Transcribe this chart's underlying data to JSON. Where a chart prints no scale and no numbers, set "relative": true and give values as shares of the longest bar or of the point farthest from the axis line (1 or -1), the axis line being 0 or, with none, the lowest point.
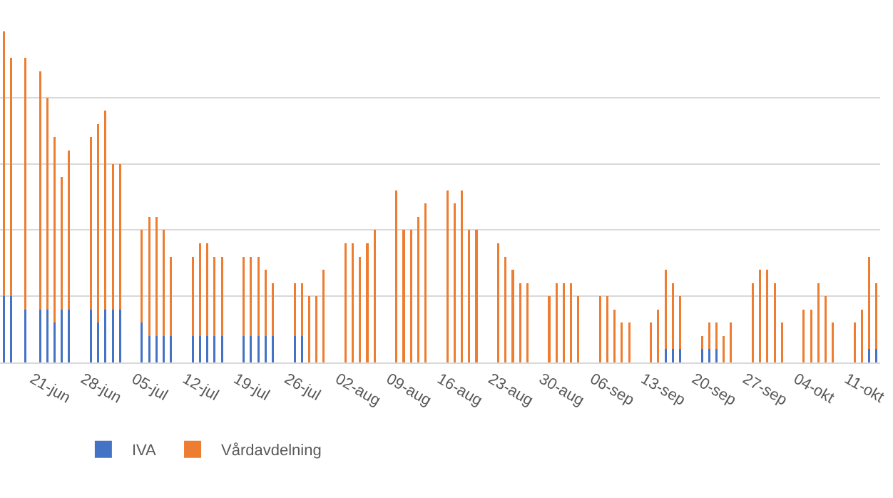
{
  "chart_data": {
    "type": "bar",
    "stacked": true,
    "relative": true,
    "grid": "y",
    "legend": "bottom left",
    "categories": [
      null,
      null,
      null,
      null,
      "21-jun",
      null,
      null,
      null,
      null,
      null,
      null,
      "28-jun",
      null,
      null,
      null,
      null,
      null,
      null,
      "05-jul",
      null,
      null,
      null,
      null,
      null,
      null,
      "12-jul",
      null,
      null,
      null,
      null,
      null,
      null,
      "19-jul",
      null,
      null,
      null,
      null,
      null,
      null,
      "26-jul",
      null,
      null,
      null,
      null,
      null,
      null,
      "02-aug",
      null,
      null,
      null,
      null,
      null,
      null,
      "09-aug",
      null,
      null,
      null,
      null,
      null,
      null,
      "16-aug",
      null,
      null,
      null,
      null,
      null,
      null,
      "23-aug",
      null,
      null,
      null,
      null,
      null,
      null,
      "30-aug",
      null,
      null,
      null,
      null,
      null,
      null,
      "06-sep",
      null,
      null,
      null,
      null,
      null,
      null,
      "13-sep",
      null,
      null,
      null,
      null,
      null,
      null,
      "20-sep",
      null,
      null,
      null,
      null,
      null,
      null,
      "27-sep",
      null,
      null,
      null,
      null,
      null,
      null,
      "04-okt",
      null,
      null,
      null,
      null,
      null,
      null,
      "11-okt",
      null,
      null,
      null,
      null
    ],
    "series": [
      {
        "name": "IVA",
        "color": "#4472c4",
        "values": [
          0.2,
          0.2,
          null,
          0.16,
          null,
          0.16,
          0.16,
          0.12,
          0.16,
          0.16,
          null,
          null,
          0.16,
          0.12,
          0.16,
          0.16,
          0.16,
          null,
          null,
          0.12,
          0.08,
          0.08,
          0.08,
          0.08,
          null,
          null,
          0.08,
          0.08,
          0.08,
          0.08,
          0.08,
          null,
          null,
          0.08,
          0.08,
          0.08,
          0.08,
          0.08,
          null,
          null,
          0.08,
          0.08,
          null,
          null,
          null,
          null,
          null,
          null,
          null,
          null,
          null,
          null,
          null,
          null,
          null,
          null,
          null,
          null,
          null,
          null,
          null,
          null,
          null,
          null,
          null,
          null,
          null,
          null,
          null,
          null,
          null,
          null,
          null,
          null,
          null,
          null,
          null,
          null,
          null,
          null,
          null,
          null,
          null,
          null,
          null,
          null,
          null,
          null,
          null,
          null,
          null,
          0.04,
          0.04,
          0.04,
          null,
          null,
          0.04,
          0.04,
          0.04,
          null,
          null,
          null,
          null,
          null,
          null,
          null,
          null,
          null,
          null,
          null,
          null,
          null,
          null,
          null,
          null,
          null,
          null,
          null,
          null,
          0.04,
          0.04
        ]
      },
      {
        "name": "Vårdavdelning",
        "color": "#ed7d31",
        "values": [
          0.8,
          0.72,
          null,
          0.76,
          null,
          0.72,
          0.64,
          0.56,
          0.4,
          0.48,
          null,
          null,
          0.52,
          0.6,
          0.6,
          0.44,
          0.44,
          null,
          null,
          0.28,
          0.36,
          0.36,
          0.32,
          0.24,
          null,
          null,
          0.24,
          0.28,
          0.28,
          0.24,
          0.24,
          null,
          null,
          0.24,
          0.24,
          0.24,
          0.2,
          0.16,
          null,
          null,
          0.16,
          0.16,
          0.2,
          0.2,
          0.28,
          null,
          null,
          0.36,
          0.36,
          0.32,
          0.36,
          0.4,
          null,
          null,
          0.52,
          0.4,
          0.4,
          0.44,
          0.48,
          null,
          null,
          0.52,
          0.48,
          0.52,
          0.4,
          0.4,
          null,
          null,
          0.36,
          0.32,
          0.28,
          0.24,
          0.24,
          null,
          null,
          0.2,
          0.24,
          0.24,
          0.24,
          0.2,
          null,
          null,
          0.2,
          0.2,
          0.16,
          0.12,
          0.12,
          null,
          null,
          0.12,
          0.16,
          0.24,
          0.2,
          0.16,
          null,
          null,
          0.04,
          0.08,
          0.08,
          0.08,
          0.12,
          null,
          null,
          0.24,
          0.28,
          0.28,
          0.24,
          0.12,
          null,
          null,
          0.16,
          0.16,
          0.24,
          0.2,
          0.12,
          null,
          null,
          0.12,
          0.16,
          0.28,
          0.2
        ]
      }
    ]
  }
}
